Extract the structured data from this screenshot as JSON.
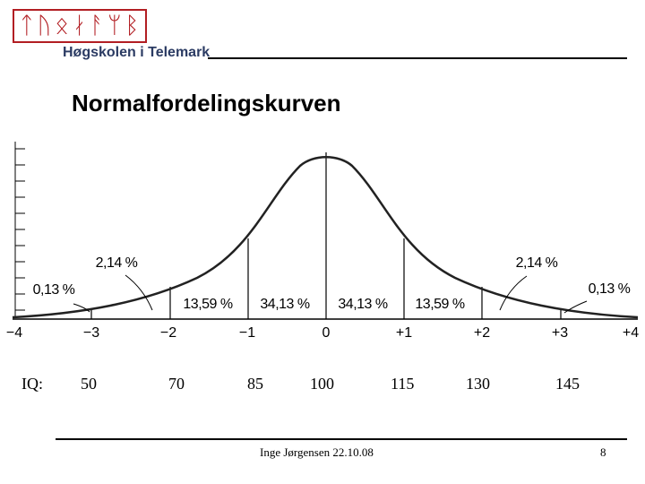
{
  "header": {
    "logo_glyphs": "ᛏᚢᛟᛅᚨᛘᛒ",
    "institution": "Høgskolen i Telemark"
  },
  "title": "Normalfordelingskurven",
  "diagram": {
    "sigma_ticks": [
      "−4",
      "−3",
      "−2",
      "−1",
      "0",
      "+1",
      "+2",
      "+3",
      "+4"
    ],
    "region_labels": [
      "13,59 %",
      "34,13 %",
      "34,13 %",
      "13,59 %"
    ],
    "tail_labels": [
      "2,14 %",
      "2,14 %",
      "0,13 %",
      "0,13 %"
    ]
  },
  "iq": {
    "label": "IQ:",
    "values": [
      "50",
      "70",
      "85",
      "100",
      "115",
      "130",
      "145"
    ]
  },
  "footer": {
    "author_date": "Inge Jørgensen 22.10.08",
    "page": "8"
  },
  "colors": {
    "logo_red": "#b21e23",
    "institution_blue": "#2b3b63",
    "curve": "#222222"
  }
}
